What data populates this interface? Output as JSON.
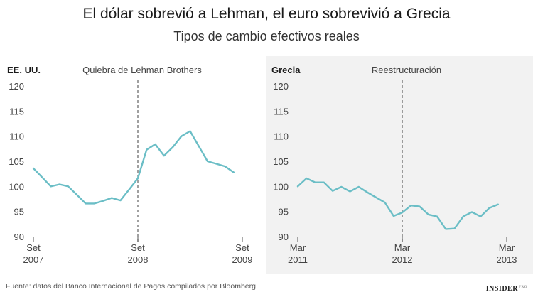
{
  "header": {
    "title": "El dólar sobrevió a Lehman, el euro sobrevivió a Grecia",
    "subtitle": "Tipos de cambio efectivos reales"
  },
  "footer": {
    "source": "Fuente: datos del Banco Internacional de Pagos compilados por Bloomberg",
    "logo": "INSIDER",
    "logo_sup": "PRO"
  },
  "colors": {
    "line": "#6bbec6",
    "event_line": "#777777",
    "right_panel_bg": "#f2f2f2"
  },
  "chart_data": [
    {
      "type": "line",
      "panel_label": "EE. UU.",
      "annotation": "Quiebra de Lehman Brothers",
      "event_x": "2008-09",
      "ylim": [
        90,
        120
      ],
      "yticks": [
        90,
        95,
        100,
        105,
        110,
        115,
        120
      ],
      "xlim": [
        "2007-09",
        "2009-09"
      ],
      "xticks": [
        {
          "x": "2007-09",
          "month": "Set",
          "year": "2007"
        },
        {
          "x": "2008-09",
          "month": "Set",
          "year": "2008"
        },
        {
          "x": "2009-09",
          "month": "Set",
          "year": "2009"
        }
      ],
      "series": [
        {
          "x": [
            "2007-09",
            "2007-10",
            "2007-11",
            "2007-12",
            "2008-01",
            "2008-02",
            "2008-03",
            "2008-04",
            "2008-05",
            "2008-06",
            "2008-07",
            "2008-08",
            "2008-09",
            "2008-10",
            "2008-11",
            "2008-12",
            "2009-01",
            "2009-02",
            "2009-03",
            "2009-04",
            "2009-05",
            "2009-06",
            "2009-07",
            "2009-08"
          ],
          "values": [
            103.6,
            101.8,
            100.0,
            100.4,
            100.0,
            98.3,
            96.6,
            96.6,
            97.1,
            97.7,
            97.2,
            99.4,
            101.6,
            107.3,
            108.4,
            106.1,
            107.8,
            110.0,
            111.0,
            108.0,
            105.0,
            104.5,
            104.0,
            102.8
          ]
        }
      ]
    },
    {
      "type": "line",
      "panel_label": "Grecia",
      "annotation": "Reestructuración",
      "event_x": "2012-03",
      "ylim": [
        90,
        120
      ],
      "yticks": [
        90,
        95,
        100,
        105,
        110,
        115,
        120
      ],
      "xlim": [
        "2011-03",
        "2013-03"
      ],
      "xticks": [
        {
          "x": "2011-03",
          "month": "Mar",
          "year": "2011"
        },
        {
          "x": "2012-03",
          "month": "Mar",
          "year": "2012"
        },
        {
          "x": "2013-03",
          "month": "Mar",
          "year": "2013"
        }
      ],
      "series": [
        {
          "x": [
            "2011-03",
            "2011-04",
            "2011-05",
            "2011-06",
            "2011-07",
            "2011-08",
            "2011-09",
            "2011-10",
            "2011-11",
            "2011-12",
            "2012-01",
            "2012-02",
            "2012-03",
            "2012-04",
            "2012-05",
            "2012-06",
            "2012-07",
            "2012-08",
            "2012-09",
            "2012-10",
            "2012-11",
            "2012-12",
            "2013-01",
            "2013-02"
          ],
          "values": [
            100.0,
            101.6,
            100.8,
            100.8,
            99.1,
            99.9,
            99.0,
            99.9,
            98.8,
            97.8,
            96.8,
            94.1,
            94.8,
            96.2,
            96.0,
            94.4,
            94.0,
            91.5,
            91.6,
            94.0,
            94.9,
            94.0,
            95.7,
            96.4
          ]
        }
      ]
    }
  ]
}
